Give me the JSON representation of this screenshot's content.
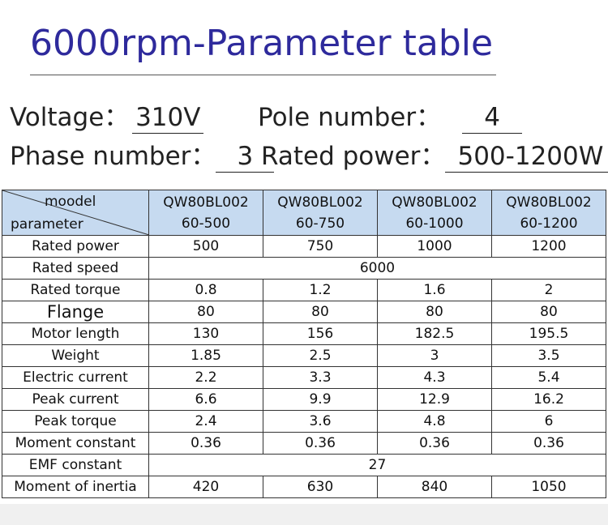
{
  "header": {
    "title": "6000rpm-Parameter table"
  },
  "specs": [
    {
      "label": "Voltage：",
      "value": "310V"
    },
    {
      "label": "Pole number：",
      "value": "4"
    },
    {
      "label": "Phase number：",
      "value": "3"
    },
    {
      "label": "Rated power：",
      "value": "500-1200W"
    }
  ],
  "table": {
    "corner": {
      "top": "moodel",
      "bottom": "parameter"
    },
    "columns": [
      {
        "model": "QW80BL002",
        "size": "60-500"
      },
      {
        "model": "QW80BL002",
        "size": "60-750"
      },
      {
        "model": "QW80BL002",
        "size": "60-1000"
      },
      {
        "model": "QW80BL002",
        "size": "60-1200"
      }
    ],
    "rows": [
      {
        "label": "Rated power",
        "values": [
          "500",
          "750",
          "1000",
          "1200"
        ]
      },
      {
        "label": "Rated speed",
        "values": [
          "6000"
        ]
      },
      {
        "label": "Rated torque",
        "values": [
          "0.8",
          "1.2",
          "1.6",
          "2"
        ]
      },
      {
        "label": "Flange",
        "values": [
          "80",
          "80",
          "80",
          "80"
        ]
      },
      {
        "label": "Motor length",
        "values": [
          "130",
          "156",
          "182.5",
          "195.5"
        ]
      },
      {
        "label": "Weight",
        "values": [
          "1.85",
          "2.5",
          "3",
          "3.5"
        ]
      },
      {
        "label": "Electric current",
        "values": [
          "2.2",
          "3.3",
          "4.3",
          "5.4"
        ]
      },
      {
        "label": "Peak current",
        "values": [
          "6.6",
          "9.9",
          "12.9",
          "16.2"
        ]
      },
      {
        "label": "Peak torque",
        "values": [
          "2.4",
          "3.6",
          "4.8",
          "6"
        ]
      },
      {
        "label": "Moment constant",
        "values": [
          "0.36",
          "0.36",
          "0.36",
          "0.36"
        ]
      },
      {
        "label": "EMF constant",
        "values": [
          "27"
        ]
      },
      {
        "label": "Moment of inertia",
        "values": [
          "420",
          "630",
          "840",
          "1050"
        ]
      }
    ]
  }
}
